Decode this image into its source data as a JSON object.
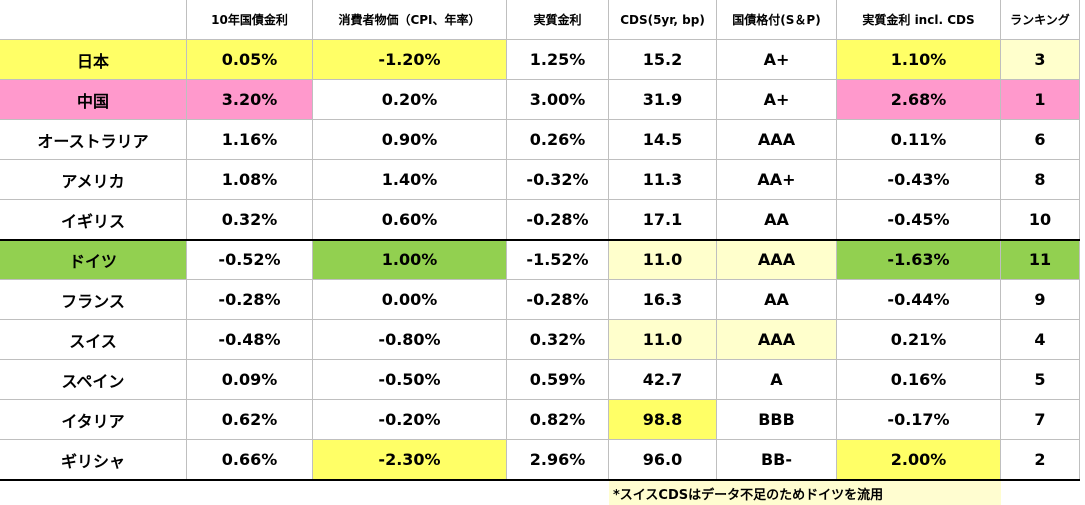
{
  "table": {
    "header": [
      "10年国債金利",
      "消費者物価（CPI、年率）",
      "実質金利",
      "CDS(5yr, bp)",
      "国債格付(S＆P)",
      "実質金利 incl. CDS",
      "ランキング"
    ],
    "rows": [
      [
        "日本",
        "0.05%",
        "-1.20%",
        "1.25%",
        "15.2",
        "A+",
        "1.10%",
        "3"
      ],
      [
        "中国",
        "3.20%",
        "0.20%",
        "3.00%",
        "31.9",
        "A+",
        "2.68%",
        "1"
      ],
      [
        "オーストラリア",
        "1.16%",
        "0.90%",
        "0.26%",
        "14.5",
        "AAA",
        "0.11%",
        "6"
      ],
      [
        "アメリカ",
        "1.08%",
        "1.40%",
        "-0.32%",
        "11.3",
        "AA+",
        "-0.43%",
        "8"
      ],
      [
        "イギリス",
        "0.32%",
        "0.60%",
        "-0.28%",
        "17.1",
        "AA",
        "-0.45%",
        "10"
      ],
      [
        "ドイツ",
        "-0.52%",
        "1.00%",
        "-1.52%",
        "11.0",
        "AAA",
        "-1.63%",
        "11"
      ],
      [
        "フランス",
        "-0.28%",
        "0.00%",
        "-0.28%",
        "16.3",
        "AA",
        "-0.44%",
        "9"
      ],
      [
        "スイス",
        "-0.48%",
        "-0.80%",
        "0.32%",
        "11.0",
        "AAA",
        "0.21%",
        "4"
      ],
      [
        "スペイン",
        "0.09%",
        "-0.50%",
        "0.59%",
        "42.7",
        "A",
        "0.16%",
        "5"
      ],
      [
        "イタリア",
        "0.62%",
        "-0.20%",
        "0.82%",
        "98.8",
        "BBB",
        "-0.17%",
        "7"
      ],
      [
        "ギリシャ",
        "0.66%",
        "-2.30%",
        "2.96%",
        "96.0",
        "BB-",
        "2.00%",
        "2"
      ]
    ]
  },
  "footnote": "*スイスCDSはデータ不足のためドイツを流用"
}
